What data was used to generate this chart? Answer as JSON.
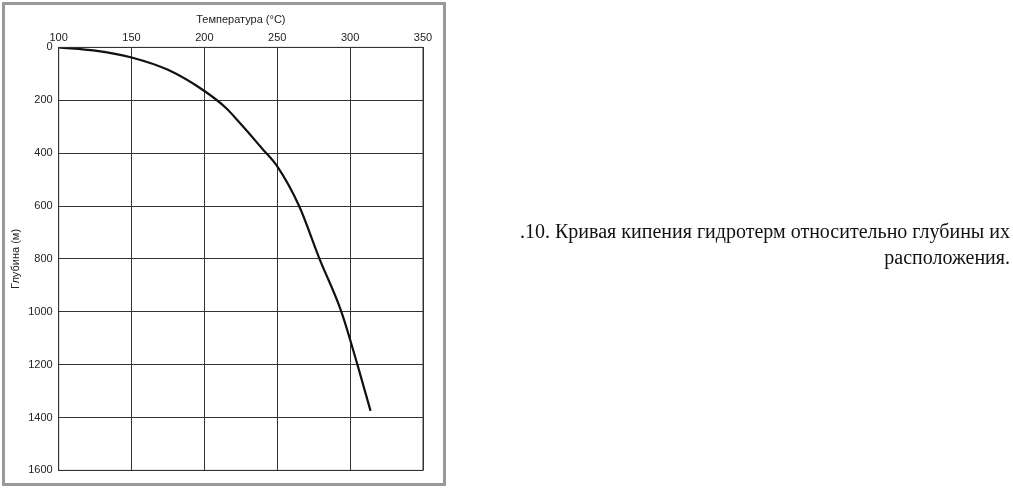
{
  "chart_data": {
    "type": "line",
    "xlabel": "Температура (°C)",
    "ylabel": "Глубина (м)",
    "annotations": [
      ".10. Кривая кипения гидротерм относительно глубины их расположения."
    ],
    "x": [
      100,
      125,
      150,
      175,
      200,
      215,
      225,
      240,
      250,
      265,
      279,
      294,
      305,
      314
    ],
    "values": [
      0,
      12,
      38,
      85,
      165,
      230,
      290,
      385,
      450,
      600,
      800,
      1000,
      1200,
      1375
    ],
    "color": "#111111",
    "xlim": [
      100,
      350
    ],
    "xticks": [
      100,
      150,
      200,
      250,
      300,
      350
    ],
    "ylim": [
      1600,
      0
    ],
    "yticks": [
      0,
      200,
      400,
      600,
      800,
      1000,
      1200,
      1400,
      1600
    ],
    "grid": true,
    "legend": false,
    "marker": "none",
    "line_style": "solid"
  }
}
